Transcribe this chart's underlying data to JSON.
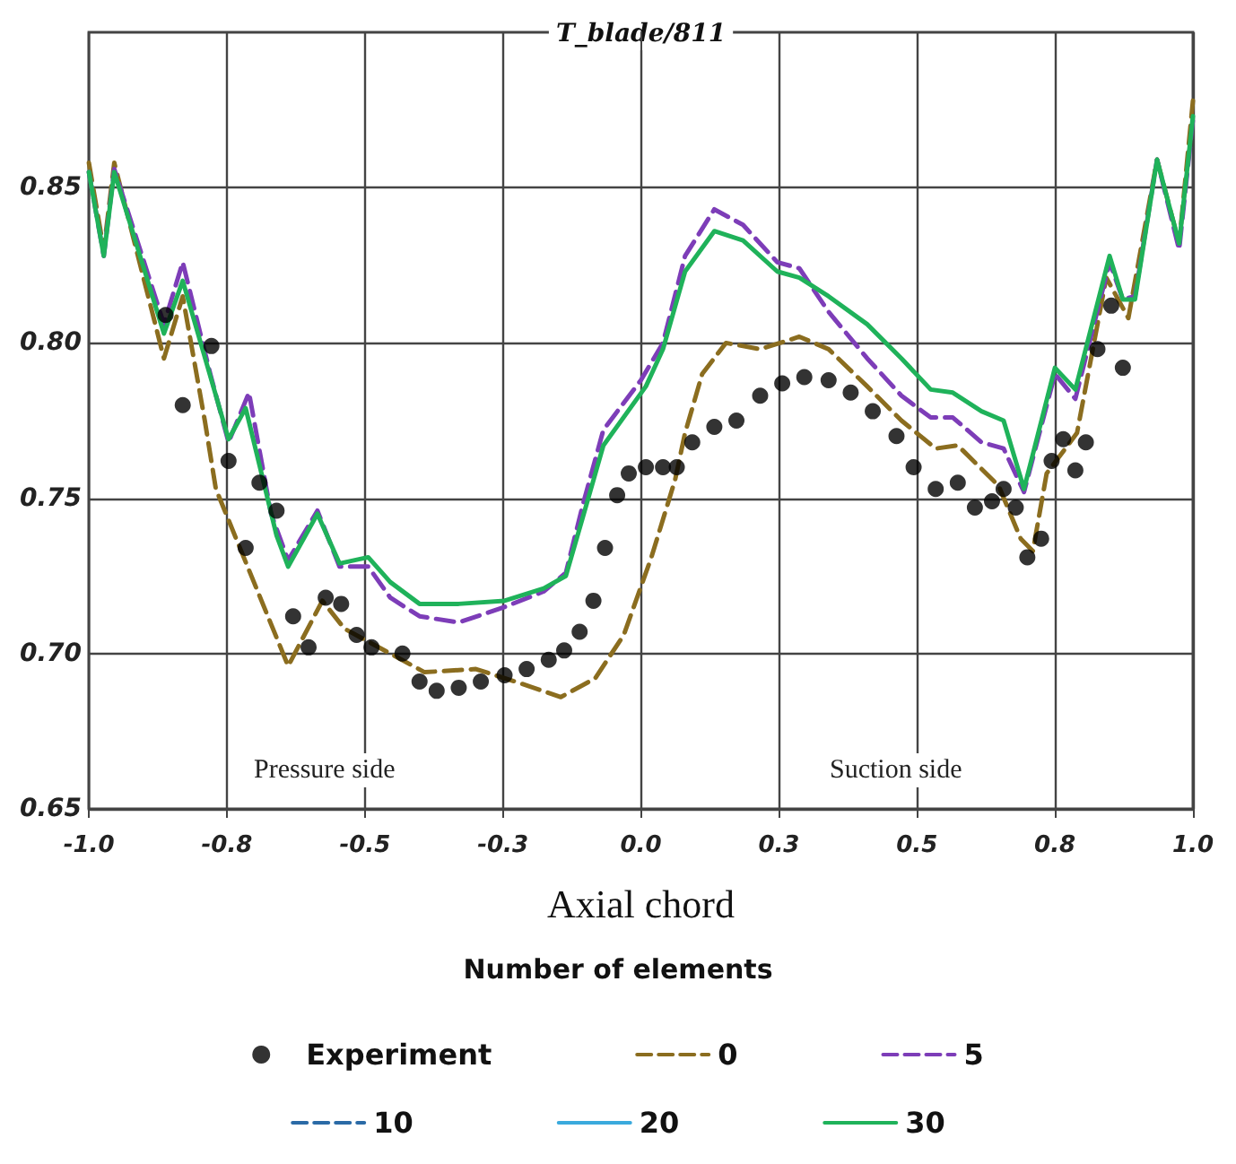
{
  "chart_data": {
    "type": "line",
    "xlabel": "Axial chord",
    "ylabel": "T_blade/811",
    "legend_title": "Number of elements",
    "legend": "bottom",
    "grid": true,
    "xlim": [
      -1,
      1
    ],
    "ylim": [
      0.65,
      0.9
    ],
    "xticks": [
      {
        "value": -1,
        "label": "-1.0"
      },
      {
        "value": -0.75,
        "label": "-0.8"
      },
      {
        "value": -0.5,
        "label": "-0.5"
      },
      {
        "value": -0.25,
        "label": "-0.3"
      },
      {
        "value": 0,
        "label": "0.0"
      },
      {
        "value": 0.25,
        "label": "0.3"
      },
      {
        "value": 0.5,
        "label": "0.5"
      },
      {
        "value": 0.75,
        "label": "0.8"
      },
      {
        "value": 1,
        "label": "1.0"
      }
    ],
    "yticks": [
      0.65,
      {
        "value": 0.7,
        "label": "0.70"
      },
      0.75,
      {
        "value": 0.8,
        "label": "0.80"
      },
      0.85
    ],
    "annotations": [
      "Pressure side",
      "Suction side"
    ],
    "series": [
      {
        "name": "Experiment",
        "type": "scatter",
        "marker": "circle",
        "color": "#000000",
        "x": [
          -0.861,
          -0.83,
          -0.778,
          -0.747,
          -0.716,
          -0.691,
          -0.66,
          -0.63,
          -0.602,
          -0.571,
          -0.543,
          -0.515,
          -0.488,
          -0.432,
          -0.401,
          -0.37,
          -0.33,
          -0.29,
          -0.247,
          -0.207,
          -0.167,
          -0.139,
          -0.111,
          -0.086,
          -0.065,
          -0.043,
          -0.022,
          0.009,
          0.04,
          0.065,
          0.093,
          0.133,
          0.173,
          0.216,
          0.256,
          0.296,
          0.34,
          0.38,
          0.42,
          0.463,
          0.494,
          0.534,
          0.574,
          0.605,
          0.636,
          0.657,
          0.679,
          0.7,
          0.725,
          0.744,
          0.765,
          0.787,
          0.806,
          0.827,
          0.852,
          0.873
        ],
        "values": [
          0.809,
          0.78,
          0.799,
          0.762,
          0.734,
          0.755,
          0.746,
          0.712,
          0.702,
          0.718,
          0.716,
          0.706,
          0.702,
          0.7,
          0.691,
          0.688,
          0.689,
          0.691,
          0.693,
          0.695,
          0.698,
          0.701,
          0.707,
          0.717,
          0.734,
          0.751,
          0.758,
          0.76,
          0.76,
          0.76,
          0.768,
          0.773,
          0.775,
          0.783,
          0.787,
          0.789,
          0.788,
          0.784,
          0.778,
          0.77,
          0.76,
          0.753,
          0.755,
          0.747,
          0.749,
          0.753,
          0.747,
          0.731,
          0.737,
          0.762,
          0.769,
          0.759,
          0.768,
          0.798,
          0.812,
          0.792
        ]
      },
      {
        "name": "0",
        "line_style": "dashed",
        "marker": "none",
        "color": "#8b6d1f",
        "x": [
          -1,
          -0.973,
          -0.954,
          -0.864,
          -0.83,
          -0.79,
          -0.77,
          -0.639,
          -0.577,
          -0.537,
          -0.454,
          -0.392,
          -0.299,
          -0.228,
          -0.145,
          -0.083,
          -0.031,
          0.019,
          0.062,
          0.08,
          0.111,
          0.154,
          0.216,
          0.287,
          0.34,
          0.41,
          0.472,
          0.534,
          0.574,
          0.648,
          0.688,
          0.71,
          0.735,
          0.79,
          0.843,
          0.883,
          0.935,
          0.975,
          1.0
        ],
        "values": [
          0.858,
          0.83,
          0.858,
          0.795,
          0.815,
          0.775,
          0.753,
          0.696,
          0.717,
          0.708,
          0.7,
          0.694,
          0.695,
          0.691,
          0.686,
          0.692,
          0.706,
          0.731,
          0.756,
          0.771,
          0.79,
          0.8,
          0.798,
          0.802,
          0.798,
          0.786,
          0.775,
          0.766,
          0.767,
          0.754,
          0.737,
          0.733,
          0.758,
          0.771,
          0.821,
          0.808,
          0.859,
          0.832,
          0.878
        ]
      },
      {
        "name": "5",
        "line_style": "dashed",
        "marker": "none",
        "color": "#7d3db8",
        "x": [
          -1,
          -0.973,
          -0.954,
          -0.864,
          -0.83,
          -0.78,
          -0.747,
          -0.71,
          -0.67,
          -0.639,
          -0.586,
          -0.546,
          -0.494,
          -0.454,
          -0.401,
          -0.33,
          -0.247,
          -0.176,
          -0.136,
          -0.105,
          -0.068,
          0.0,
          0.04,
          0.08,
          0.133,
          0.185,
          0.247,
          0.287,
          0.34,
          0.41,
          0.472,
          0.525,
          0.565,
          0.617,
          0.657,
          0.694,
          0.75,
          0.787,
          0.849,
          0.873,
          0.895,
          0.935,
          0.975,
          1.0
        ],
        "values": [
          0.855,
          0.828,
          0.856,
          0.806,
          0.826,
          0.79,
          0.768,
          0.784,
          0.745,
          0.73,
          0.746,
          0.728,
          0.728,
          0.718,
          0.712,
          0.71,
          0.715,
          0.72,
          0.726,
          0.748,
          0.772,
          0.788,
          0.8,
          0.828,
          0.843,
          0.838,
          0.826,
          0.824,
          0.81,
          0.795,
          0.783,
          0.776,
          0.776,
          0.768,
          0.766,
          0.752,
          0.79,
          0.782,
          0.826,
          0.814,
          0.815,
          0.859,
          0.83,
          0.872
        ]
      },
      {
        "name": "10",
        "line_style": "dashed",
        "marker": "none",
        "color": "#2a6aa6"
      },
      {
        "name": "20",
        "line_style": "solid",
        "marker": "none",
        "color": "#3aaadd"
      },
      {
        "name": "30",
        "line_style": "solid",
        "marker": "none",
        "color": "#1fb25a",
        "x": [
          -1,
          -0.973,
          -0.954,
          -0.864,
          -0.83,
          -0.747,
          -0.716,
          -0.66,
          -0.639,
          -0.586,
          -0.546,
          -0.494,
          -0.454,
          -0.401,
          -0.33,
          -0.247,
          -0.176,
          -0.136,
          -0.105,
          -0.068,
          0.009,
          0.04,
          0.08,
          0.133,
          0.185,
          0.247,
          0.287,
          0.34,
          0.41,
          0.472,
          0.525,
          0.565,
          0.617,
          0.657,
          0.694,
          0.75,
          0.787,
          0.849,
          0.873,
          0.895,
          0.935,
          0.975,
          1.0
        ],
        "values": [
          0.855,
          0.828,
          0.855,
          0.803,
          0.82,
          0.769,
          0.779,
          0.738,
          0.728,
          0.745,
          0.729,
          0.731,
          0.723,
          0.716,
          0.716,
          0.717,
          0.721,
          0.725,
          0.744,
          0.767,
          0.786,
          0.798,
          0.823,
          0.836,
          0.833,
          0.823,
          0.821,
          0.815,
          0.806,
          0.795,
          0.785,
          0.784,
          0.778,
          0.775,
          0.753,
          0.792,
          0.785,
          0.828,
          0.814,
          0.814,
          0.859,
          0.832,
          0.873
        ]
      }
    ]
  }
}
